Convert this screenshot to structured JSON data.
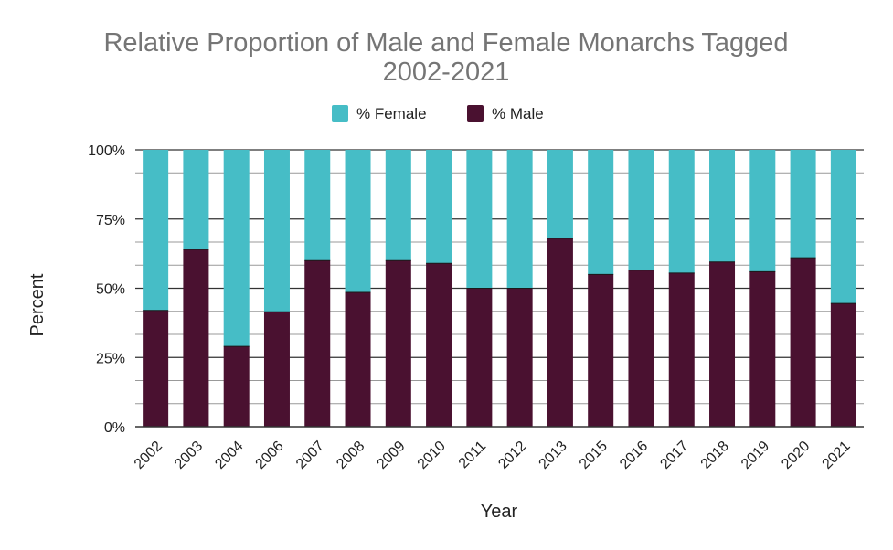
{
  "chart_data": {
    "type": "bar",
    "stacked": true,
    "title": "Relative Proportion of Male and Female Monarchs Tagged 2002-2021",
    "title_lines": [
      "Relative Proportion of Male and Female Monarchs Tagged",
      "2002-2021"
    ],
    "xlabel": "Year",
    "ylabel": "Percent",
    "categories": [
      "2002",
      "2003",
      "2004",
      "2006",
      "2007",
      "2008",
      "2009",
      "2010",
      "2011",
      "2012",
      "2013",
      "2015",
      "2016",
      "2017",
      "2018",
      "2019",
      "2020",
      "2021"
    ],
    "series": [
      {
        "name": "% Male",
        "color": "#4a1130",
        "values": [
          42,
          64,
          29,
          41.5,
          60,
          48.5,
          60,
          59,
          50,
          50,
          68,
          55,
          56.5,
          55.5,
          59.5,
          56,
          61,
          44.5
        ]
      },
      {
        "name": "% Female",
        "color": "#46bdc6",
        "values": [
          58,
          36,
          71,
          58.5,
          40,
          51.5,
          40,
          41,
          50,
          50,
          32,
          45,
          43.5,
          44.5,
          40.5,
          44,
          39,
          55.5
        ]
      }
    ],
    "legend_order": [
      "% Female",
      "% Male"
    ],
    "legend_position": "top",
    "ylim": [
      0,
      100
    ],
    "yticks": [
      {
        "value": 0,
        "label": "0%"
      },
      {
        "value": 25,
        "label": "25%"
      },
      {
        "value": 50,
        "label": "50%"
      },
      {
        "value": 75,
        "label": "75%"
      },
      {
        "value": 100,
        "label": "100%"
      }
    ],
    "minor_gridlines_per_major": 2,
    "grid": true,
    "colors": {
      "title": "#757575",
      "gridline": "#999999",
      "axis": "#333333"
    }
  }
}
